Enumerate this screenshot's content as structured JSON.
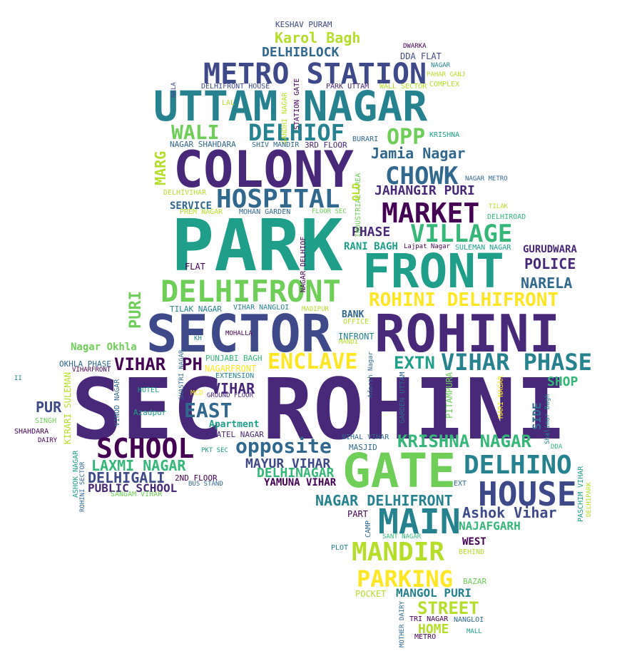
{
  "word_cloud": {
    "colors": {
      "background": "#ffffff",
      "d1": "#440154",
      "d2": "#482878",
      "d3": "#3e4989",
      "d4": "#31688e",
      "m1": "#26828e",
      "m2": "#1f9e89",
      "m3": "#35b779",
      "m4": "#6ece58",
      "l1": "#b5de2b",
      "l2": "#fde725"
    },
    "words": [
      {
        "id": "w-sec",
        "text": "SEC",
        "color": "d2"
      },
      {
        "id": "w-rohini-big",
        "text": "ROHINI",
        "color": "d2"
      },
      {
        "id": "w-park",
        "text": "PARK",
        "color": "m2"
      },
      {
        "id": "w-sector",
        "text": "SECTOR",
        "color": "d3"
      },
      {
        "id": "w-rohini-2",
        "text": "ROHINI",
        "color": "d2"
      },
      {
        "id": "w-colony",
        "text": "COLONY",
        "color": "d2"
      },
      {
        "id": "w-uttam-nagar",
        "text": "UTTAM NAGAR",
        "color": "m1"
      },
      {
        "id": "w-front",
        "text": "FRONT",
        "color": "m2"
      },
      {
        "id": "w-gate",
        "text": "GATE",
        "color": "m4"
      },
      {
        "id": "w-metro-station",
        "text": "METRO STATION",
        "color": "d3"
      },
      {
        "id": "w-delhifront",
        "text": "DELHIFRONT",
        "color": "m4"
      },
      {
        "id": "w-hospital",
        "text": "HOSPITAL",
        "color": "d4"
      },
      {
        "id": "w-market",
        "text": "MARKET",
        "color": "d1"
      },
      {
        "id": "w-main",
        "text": "MAIN",
        "color": "m1"
      },
      {
        "id": "w-house",
        "text": "HOUSE",
        "color": "d3"
      },
      {
        "id": "w-school",
        "text": "SCHOOL",
        "color": "d1"
      },
      {
        "id": "w-mandir",
        "text": "MANDIR",
        "color": "l1"
      },
      {
        "id": "w-delhino",
        "text": "DELHINO",
        "color": "m1"
      },
      {
        "id": "w-vihar-phase",
        "text": "VIHAR PHASE",
        "color": "m1"
      },
      {
        "id": "w-wali",
        "text": "WALI",
        "color": "m4"
      },
      {
        "id": "w-delhiof",
        "text": "DELHIOF",
        "color": "m1"
      },
      {
        "id": "w-village",
        "text": "VILLAGE",
        "color": "m3"
      },
      {
        "id": "w-chowk",
        "text": "CHOWK",
        "color": "d4"
      },
      {
        "id": "w-opp",
        "text": "OPP",
        "color": "m4"
      },
      {
        "id": "w-parking",
        "text": "PARKING",
        "color": "l2"
      },
      {
        "id": "w-enclave",
        "text": "ENCLAVE",
        "color": "l2"
      },
      {
        "id": "w-rohini-delhifront",
        "text": "ROHINI DELHIFRONT",
        "color": "l2"
      },
      {
        "id": "w-opposite",
        "text": "opposite",
        "color": "d4"
      },
      {
        "id": "w-east",
        "text": "EAST",
        "color": "d4"
      },
      {
        "id": "w-krishna-nagar",
        "text": "KRISHNA NAGAR",
        "color": "m3"
      },
      {
        "id": "w-extn",
        "text": "EXTN",
        "color": "m2"
      },
      {
        "id": "w-vihar-1",
        "text": "VIHAR",
        "color": "d1"
      },
      {
        "id": "w-ph",
        "text": "PH",
        "color": "d1"
      },
      {
        "id": "w-karol-bagh",
        "text": "Karol Bagh",
        "color": "l1"
      },
      {
        "id": "w-delhiblock",
        "text": "DELHIBLOCK",
        "color": "d4"
      },
      {
        "id": "w-jamia-nagar",
        "text": "Jamia Nagar",
        "color": "d4"
      },
      {
        "id": "w-jahangir-puri",
        "text": "JAHANGIR PURI",
        "color": "d2"
      },
      {
        "id": "w-laxmi-nagar",
        "text": "LAXMI NAGAR",
        "color": "m3"
      },
      {
        "id": "w-delhigali",
        "text": "DELHIGALI",
        "color": "d3"
      },
      {
        "id": "w-nagar-delhifront",
        "text": "NAGAR DELHIFRONT",
        "color": "m1"
      },
      {
        "id": "w-ashok-vihar",
        "text": "Ashok Vihar",
        "color": "d3"
      },
      {
        "id": "w-street",
        "text": "STREET",
        "color": "l1"
      },
      {
        "id": "w-puri-vertical",
        "text": "PURI",
        "color": "m4"
      },
      {
        "id": "w-marg",
        "text": "MARG",
        "color": "l1"
      },
      {
        "id": "w-narela",
        "text": "NARELA",
        "color": "d4"
      },
      {
        "id": "w-police",
        "text": "POLICE",
        "color": "d2"
      },
      {
        "id": "w-phase",
        "text": "PHASE",
        "color": "d2"
      },
      {
        "id": "w-mayur-vihar",
        "text": "MAYUR VIHAR",
        "color": "d3"
      },
      {
        "id": "w-delhinagar",
        "text": "DELHINAGAR",
        "color": "m3"
      },
      {
        "id": "w-mangol-puri",
        "text": "MANGOL PURI",
        "color": "m1"
      },
      {
        "id": "w-vihar-2",
        "text": "VIHAR",
        "color": "d2"
      },
      {
        "id": "w-pur",
        "text": "PUR",
        "color": "d3"
      },
      {
        "id": "w-shop",
        "text": "SHOP",
        "color": "m3"
      },
      {
        "id": "w-home",
        "text": "HOME",
        "color": "l1"
      },
      {
        "id": "w-public-school",
        "text": "PUBLIC SCHOOL",
        "color": "d2"
      },
      {
        "id": "w-yamuna-vihar",
        "text": "YAMUNA VIHAR",
        "color": "d1"
      },
      {
        "id": "w-najafgarh",
        "text": "NAJAFGARH",
        "color": "m3"
      },
      {
        "id": "w-rani-bagh",
        "text": "RANI BAGH",
        "color": "m2"
      },
      {
        "id": "w-gurudwara",
        "text": "GURUDWARA",
        "color": "d2"
      },
      {
        "id": "w-nagar-okhla",
        "text": "Nagar Okhla",
        "color": "m4"
      },
      {
        "id": "w-side",
        "text": "SIDE",
        "color": "d4"
      },
      {
        "id": "w-west",
        "text": "WEST",
        "color": "d1"
      },
      {
        "id": "w-keshav-puram",
        "text": "KESHAV PURAM",
        "color": "d3"
      },
      {
        "id": "w-dwarka",
        "text": "DWARKA",
        "color": "d1"
      },
      {
        "id": "w-dda-flat",
        "text": "DDA FLAT",
        "color": "d3"
      },
      {
        "id": "w-nagar-top",
        "text": "NAGAR",
        "color": "m1"
      },
      {
        "id": "w-pahar-ganj",
        "text": "PAHAR GANJ",
        "color": "l1"
      },
      {
        "id": "w-complex",
        "text": "COMPLEX",
        "color": "l1"
      },
      {
        "id": "w-nala",
        "text": "NALA",
        "color": "d3"
      },
      {
        "id": "w-delhifront-house",
        "text": "DELHIFRONT HOUSE",
        "color": "d3"
      },
      {
        "id": "w-park-uttam",
        "text": "PARK UTTAM",
        "color": "d2"
      },
      {
        "id": "w-wall-sector",
        "text": "WALL SECTOR",
        "color": "l1"
      },
      {
        "id": "w-lal",
        "text": "LAL",
        "color": "l1"
      },
      {
        "id": "w-gandhi-nagar",
        "text": "GANDHI NAGAR",
        "color": "l1"
      },
      {
        "id": "w-station-gate",
        "text": "STATION GATE",
        "color": "d1"
      },
      {
        "id": "w-burari",
        "text": "BURARI",
        "color": "d4"
      },
      {
        "id": "w-krishna",
        "text": "KRISHNA",
        "color": "m2"
      },
      {
        "id": "w-nagar-shahdara",
        "text": "NAGAR SHAHDARA",
        "color": "d4"
      },
      {
        "id": "w-shiv-mandir",
        "text": "SHIV MANDIR",
        "color": "d4"
      },
      {
        "id": "w-3rd-floor",
        "text": "3RD FLOOR",
        "color": "d2"
      },
      {
        "id": "w-industrial-area",
        "text": "INDUSTRIAL AREA",
        "color": "m4"
      },
      {
        "id": "w-old",
        "text": "OLD",
        "color": "l1"
      },
      {
        "id": "w-nagar-metro",
        "text": "NAGAR METRO",
        "color": "d4"
      },
      {
        "id": "w-tilak",
        "text": "TILAK",
        "color": "l1"
      },
      {
        "id": "w-delhiroad",
        "text": "DELHIROAD",
        "color": "m3"
      },
      {
        "id": "w-delhivihar",
        "text": "DELHIVIHAR",
        "color": "l1"
      },
      {
        "id": "w-service",
        "text": "SERVICE",
        "color": "d4"
      },
      {
        "id": "w-prem-nagar",
        "text": "PREM NAGAR",
        "color": "l1"
      },
      {
        "id": "w-mohan-garden",
        "text": "MOHAN GARDEN",
        "color": "d4"
      },
      {
        "id": "w-floor-sec",
        "text": "FLOOR SEC",
        "color": "m4"
      },
      {
        "id": "w-nagar-delhiof",
        "text": "NAGAR DELHIOF",
        "color": "d1"
      },
      {
        "id": "w-lajpat-nagar",
        "text": "Lajpat Nagar",
        "color": "d1"
      },
      {
        "id": "w-suleman-nagar",
        "text": "SULEMAN NAGAR",
        "color": "m2"
      },
      {
        "id": "w-flat",
        "text": "FLAT",
        "color": "d1"
      },
      {
        "id": "w-tilak-nagar",
        "text": "TILAK NAGAR",
        "color": "m1"
      },
      {
        "id": "w-vihar-nangloi",
        "text": "VIHAR NANGLOI",
        "color": "m1"
      },
      {
        "id": "w-madipur",
        "text": "MADIPUR",
        "color": "l1"
      },
      {
        "id": "w-bank",
        "text": "BANK",
        "color": "d4"
      },
      {
        "id": "w-office",
        "text": "OFFICE",
        "color": "l1"
      },
      {
        "id": "w-mohalla",
        "text": "MOHALLA",
        "color": "d1"
      },
      {
        "id": "w-kh",
        "text": "KH",
        "color": "m1"
      },
      {
        "id": "w-infront",
        "text": "INFRONT",
        "color": "m1"
      },
      {
        "id": "w-mandi",
        "text": "MANDI",
        "color": "l1"
      },
      {
        "id": "w-shastri-nagar",
        "text": "SHASTRI NAGAR",
        "color": "d4"
      },
      {
        "id": "w-punjabi-bagh",
        "text": "PUNJABI BAGH",
        "color": "m3"
      },
      {
        "id": "w-nagarfront",
        "text": "NAGARFRONT",
        "color": "l2"
      },
      {
        "id": "w-extension",
        "text": "EXTENSION",
        "color": "m1"
      },
      {
        "id": "w-okhla-phase",
        "text": "OKHLA PHASE",
        "color": "d4"
      },
      {
        "id": "w-viharfront",
        "text": "VIHARFRONT",
        "color": "d1"
      },
      {
        "id": "w-ii",
        "text": "II",
        "color": "m1"
      },
      {
        "id": "w-hotel",
        "text": "HOTEL",
        "color": "m2"
      },
      {
        "id": "w-mcd",
        "text": "MCD",
        "color": "l2"
      },
      {
        "id": "w-ground-floor",
        "text": "GROUND FLOOR",
        "color": "d2"
      },
      {
        "id": "w-azadpur",
        "text": "Azadpur",
        "color": "m2"
      },
      {
        "id": "w-apartment",
        "text": "Apartment",
        "color": "m2"
      },
      {
        "id": "w-patel-nagar",
        "text": "PATEL NAGAR",
        "color": "d2"
      },
      {
        "id": "w-vinod-nagar",
        "text": "VINOD NAGAR",
        "color": "d4"
      },
      {
        "id": "w-kirari-suleman",
        "text": "KIRARI SULEMAN",
        "color": "l1"
      },
      {
        "id": "w-singh",
        "text": "SINGH",
        "color": "m4"
      },
      {
        "id": "w-shahdara",
        "text": "SHAHDARA",
        "color": "d1"
      },
      {
        "id": "w-dairy",
        "text": "DAIRY",
        "color": "d1"
      },
      {
        "id": "w-ashok-nagar",
        "text": "ASHOK NAGAR",
        "color": "m2"
      },
      {
        "id": "w-rohini-sector",
        "text": "ROHINI SECTOR",
        "color": "d4"
      },
      {
        "id": "w-pkt-sec",
        "text": "PKT SEC",
        "color": "m2"
      },
      {
        "id": "w-adarsh-nagar",
        "text": "Adarsh Nagar",
        "color": "d4"
      },
      {
        "id": "w-garden-uttam",
        "text": "GARDEN UTTAM",
        "color": "d4"
      },
      {
        "id": "w-pitampura",
        "text": "PITAMPURA",
        "color": "m4"
      },
      {
        "id": "w-hari-nagar",
        "text": "HARI NAGAR",
        "color": "l2"
      },
      {
        "id": "w-shalimar-bagh",
        "text": "Shalimar Bagh",
        "color": "m1"
      },
      {
        "id": "w-dda",
        "text": "DDA",
        "color": "m3"
      },
      {
        "id": "w-nihal-vihar",
        "text": "NIHAL VIHAR",
        "color": "d4"
      },
      {
        "id": "w-masjid",
        "text": "MASJID",
        "color": "d4"
      },
      {
        "id": "w-2nd-floor",
        "text": "2ND FLOOR",
        "color": "d1"
      },
      {
        "id": "w-bus-stand",
        "text": "BUS STAND",
        "color": "d4"
      },
      {
        "id": "w-sangam-vihar",
        "text": "SANGAM VIHAR",
        "color": "m4"
      },
      {
        "id": "w-ext",
        "text": "EXT",
        "color": "d4"
      },
      {
        "id": "w-part",
        "text": "PART",
        "color": "d1"
      },
      {
        "id": "w-camp",
        "text": "CAMP",
        "color": "d4"
      },
      {
        "id": "w-sant-nagar",
        "text": "SANT NAGAR",
        "color": "m3"
      },
      {
        "id": "w-paschim-vihar",
        "text": "PASCHIM VIHAR",
        "color": "m2"
      },
      {
        "id": "w-delhipark",
        "text": "DELHIPARK",
        "color": "l1"
      },
      {
        "id": "w-plot",
        "text": "PLOT",
        "color": "m1"
      },
      {
        "id": "w-behind",
        "text": "BEHIND",
        "color": "l1"
      },
      {
        "id": "w-bazar",
        "text": "BAZAR",
        "color": "m4"
      },
      {
        "id": "w-pocket",
        "text": "POCKET",
        "color": "l1"
      },
      {
        "id": "w-mother-dairy",
        "text": "MOTHER DAIRY",
        "color": "d4"
      },
      {
        "id": "w-tri-nagar",
        "text": "TRI NAGAR",
        "color": "d1"
      },
      {
        "id": "w-nangloi",
        "text": "NANGLOI",
        "color": "d4"
      },
      {
        "id": "w-metro",
        "text": "METRO",
        "color": "d1"
      },
      {
        "id": "w-mall",
        "text": "MALL",
        "color": "m2"
      }
    ]
  }
}
